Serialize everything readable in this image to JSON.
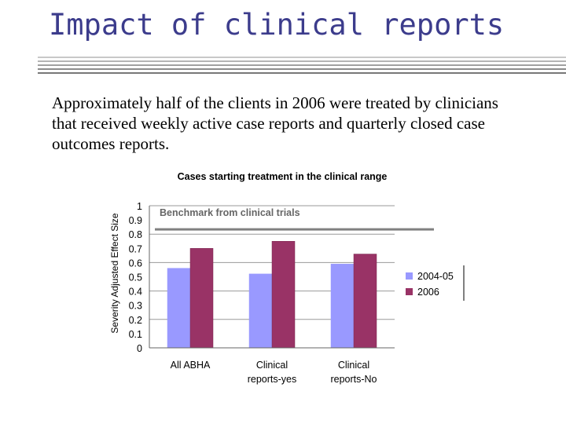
{
  "slide": {
    "title": "Impact of clinical reports",
    "body": "Approximately half of the clients in 2006 were treated by clinicians that received weekly active case reports and quarterly closed case outcomes reports."
  },
  "colors": {
    "title": "#3c3c8c",
    "series_2004": "#9999ff",
    "series_2006": "#993366",
    "benchmark": "#808080"
  },
  "chart_data": {
    "type": "bar",
    "title": "Cases starting treatment in the clinical range",
    "ylabel": "Severity Adjusted Effect Size",
    "xlabel": "",
    "ylim": [
      0,
      1
    ],
    "yticks": [
      "0",
      "0.1",
      "0.2",
      "0.3",
      "0.4",
      "0.5",
      "0.6",
      "0.7",
      "0.8",
      "0.9",
      "1"
    ],
    "grid": "horizontal",
    "legend_position": "right",
    "categories": [
      [
        "All ABHA"
      ],
      [
        "Clinical",
        "reports-yes"
      ],
      [
        "Clinical",
        "reports-No"
      ]
    ],
    "series": [
      {
        "name": "2004-05",
        "values": [
          0.56,
          0.52,
          0.59
        ]
      },
      {
        "name": "2006",
        "values": [
          0.7,
          0.75,
          0.66
        ]
      }
    ],
    "annotation": {
      "label": "Benchmark from clinical trials",
      "value": 0.85
    }
  }
}
